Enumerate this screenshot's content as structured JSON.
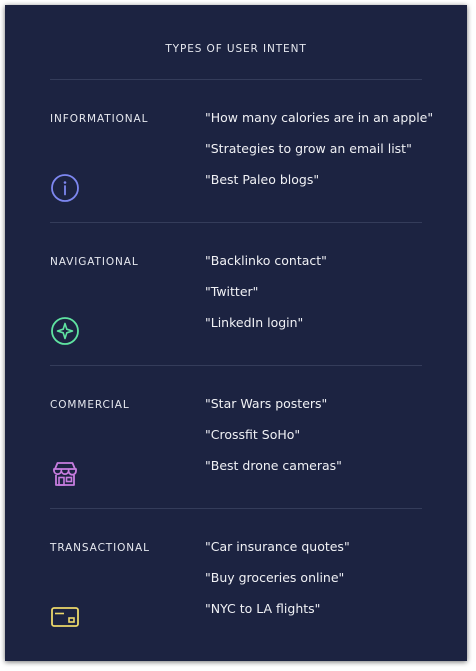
{
  "title": "TYPES OF USER INTENT",
  "sections": [
    {
      "label": "INFORMATIONAL",
      "icon": "info-circle-icon",
      "icon_color": "#7d87f0",
      "examples": [
        "\"How many calories are in an apple\"",
        "\"Strategies to grow an email list\"",
        "\"Best Paleo blogs\""
      ]
    },
    {
      "label": "NAVIGATIONAL",
      "icon": "compass-star-icon",
      "icon_color": "#5fe3a1",
      "examples": [
        "\"Backlinko contact\"",
        "\"Twitter\"",
        "\"LinkedIn login\""
      ]
    },
    {
      "label": "COMMERCIAL",
      "icon": "storefront-icon",
      "icon_color": "#c77ddf",
      "examples": [
        "\"Star Wars posters\"",
        "\"Crossfit SoHo\"",
        "\"Best drone cameras\""
      ]
    },
    {
      "label": "TRANSACTIONAL",
      "icon": "credit-card-icon",
      "icon_color": "#ecd86a",
      "examples": [
        "\"Car insurance quotes\"",
        "\"Buy groceries online\"",
        "\"NYC to LA flights\""
      ]
    }
  ]
}
